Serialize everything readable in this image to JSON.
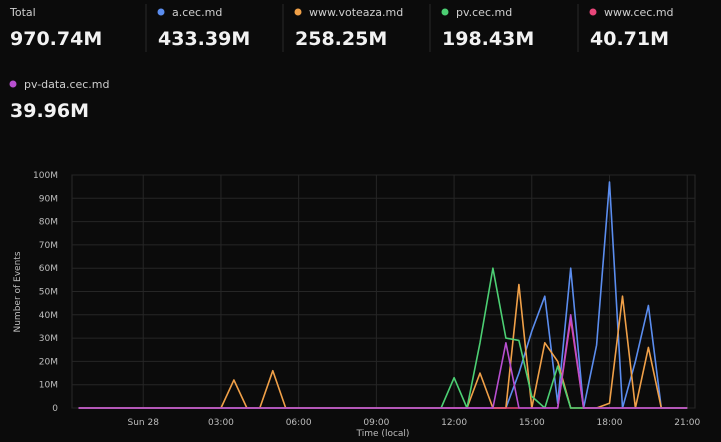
{
  "summary": {
    "total_label": "Total",
    "total_value": "970.74M",
    "series_values": [
      "433.39M",
      "258.25M",
      "198.43M",
      "40.71M",
      "39.96M"
    ]
  },
  "chart_data": {
    "type": "line",
    "ylabel": "Number of Events",
    "xlabel": "Time (local)",
    "x": [
      -2.5,
      -2,
      -1.5,
      -1,
      -0.5,
      0,
      0.5,
      1,
      1.5,
      2,
      2.5,
      3,
      3.5,
      4,
      4.5,
      5,
      5.5,
      6,
      6.5,
      7,
      7.5,
      8,
      8.5,
      9,
      9.5,
      10,
      10.5,
      11,
      11.5,
      12,
      12.5,
      13,
      13.5,
      14,
      14.5,
      15,
      15.5,
      16,
      16.5,
      17,
      17.5,
      18,
      18.5,
      19,
      19.5,
      20,
      20.5,
      21
    ],
    "series": [
      {
        "name": "a.cec.md",
        "color": "#5b8def",
        "values": [
          0,
          0,
          0,
          0,
          0,
          0,
          0,
          0,
          0,
          0,
          0,
          0,
          0,
          0,
          0,
          0,
          0,
          0,
          0,
          0,
          0,
          0,
          0,
          0,
          0,
          0,
          0,
          0,
          0,
          0,
          0,
          0,
          0,
          0,
          15000000,
          33000000,
          48000000,
          2000000,
          60000000,
          0,
          27000000,
          97000000,
          0,
          20000000,
          44000000,
          0,
          0,
          0
        ]
      },
      {
        "name": "www.voteaza.md",
        "color": "#f0a048",
        "values": [
          0,
          0,
          0,
          0,
          0,
          0,
          0,
          0,
          0,
          0,
          0,
          0,
          12000000,
          0,
          0,
          16000000,
          0,
          0,
          0,
          0,
          0,
          0,
          0,
          0,
          0,
          0,
          0,
          0,
          0,
          0,
          0,
          15000000,
          0,
          0,
          53000000,
          0,
          28000000,
          20000000,
          0,
          0,
          0,
          2000000,
          48000000,
          0,
          26000000,
          0,
          0,
          0
        ]
      },
      {
        "name": "pv.cec.md",
        "color": "#4ccf73",
        "values": [
          0,
          0,
          0,
          0,
          0,
          0,
          0,
          0,
          0,
          0,
          0,
          0,
          0,
          0,
          0,
          0,
          0,
          0,
          0,
          0,
          0,
          0,
          0,
          0,
          0,
          0,
          0,
          0,
          0,
          13000000,
          0,
          28000000,
          60000000,
          30000000,
          29000000,
          5000000,
          0,
          18000000,
          0,
          0,
          0,
          0,
          0,
          0,
          0,
          0,
          0,
          0
        ]
      },
      {
        "name": "www.cec.md",
        "color": "#e8467a",
        "values": [
          0,
          0,
          0,
          0,
          0,
          0,
          0,
          0,
          0,
          0,
          0,
          0,
          0,
          0,
          0,
          0,
          0,
          0,
          0,
          0,
          0,
          0,
          0,
          0,
          0,
          0,
          0,
          0,
          0,
          0,
          0,
          0,
          0,
          0,
          0,
          0,
          0,
          0,
          38000000,
          0,
          0,
          0,
          0,
          0,
          0,
          0,
          0,
          0
        ]
      },
      {
        "name": "pv-data.cec.md",
        "color": "#b84fd0",
        "values": [
          0,
          0,
          0,
          0,
          0,
          0,
          0,
          0,
          0,
          0,
          0,
          0,
          0,
          0,
          0,
          0,
          0,
          0,
          0,
          0,
          0,
          0,
          0,
          0,
          0,
          0,
          0,
          0,
          0,
          0,
          0,
          0,
          0,
          28000000,
          0,
          0,
          0,
          0,
          40000000,
          0,
          0,
          0,
          0,
          0,
          0,
          0,
          0,
          0
        ]
      }
    ],
    "xlim": [
      -2.75,
      21.3
    ],
    "xticks": [
      {
        "value": 0,
        "label": "Sun 28"
      },
      {
        "value": 3,
        "label": "03:00"
      },
      {
        "value": 6,
        "label": "06:00"
      },
      {
        "value": 9,
        "label": "09:00"
      },
      {
        "value": 12,
        "label": "12:00"
      },
      {
        "value": 15,
        "label": "15:00"
      },
      {
        "value": 18,
        "label": "18:00"
      },
      {
        "value": 21,
        "label": "21:00"
      }
    ],
    "ylim": [
      0,
      100000000
    ],
    "yticks": [
      0,
      {
        "value": 10000000,
        "label": "10M"
      },
      {
        "value": 20000000,
        "label": "20M"
      },
      {
        "value": 30000000,
        "label": "30M"
      },
      {
        "value": 40000000,
        "label": "40M"
      },
      {
        "value": 50000000,
        "label": "50M"
      },
      {
        "value": 60000000,
        "label": "60M"
      },
      {
        "value": 70000000,
        "label": "70M"
      },
      {
        "value": 80000000,
        "label": "80M"
      },
      {
        "value": 90000000,
        "label": "90M"
      },
      {
        "value": 100000000,
        "label": "100M"
      }
    ],
    "grid": true
  }
}
